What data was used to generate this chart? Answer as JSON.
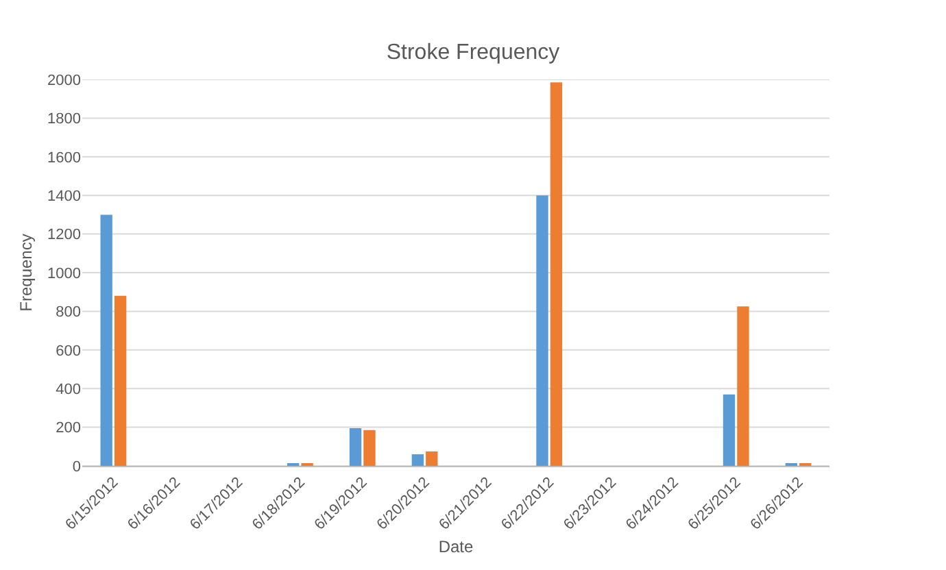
{
  "chart_data": {
    "type": "bar",
    "title": "Stroke Frequency",
    "xlabel": "Date",
    "ylabel": "Frequency",
    "categories": [
      "6/15/2012",
      "6/16/2012",
      "6/17/2012",
      "6/18/2012",
      "6/19/2012",
      "6/20/2012",
      "6/21/2012",
      "6/22/2012",
      "6/23/2012",
      "6/24/2012",
      "6/25/2012",
      "6/26/2012"
    ],
    "series": [
      {
        "color": "#5b9bd5",
        "values": [
          1300,
          0,
          0,
          10,
          195,
          60,
          0,
          1400,
          0,
          0,
          370,
          10
        ]
      },
      {
        "color": "#ed7d31",
        "values": [
          880,
          0,
          0,
          10,
          185,
          75,
          0,
          1985,
          0,
          0,
          825,
          10
        ]
      }
    ],
    "ylim": [
      0,
      2000
    ],
    "yticks": [
      0,
      200,
      400,
      600,
      800,
      1000,
      1200,
      1400,
      1600,
      1800,
      2000
    ],
    "grid": "y"
  }
}
